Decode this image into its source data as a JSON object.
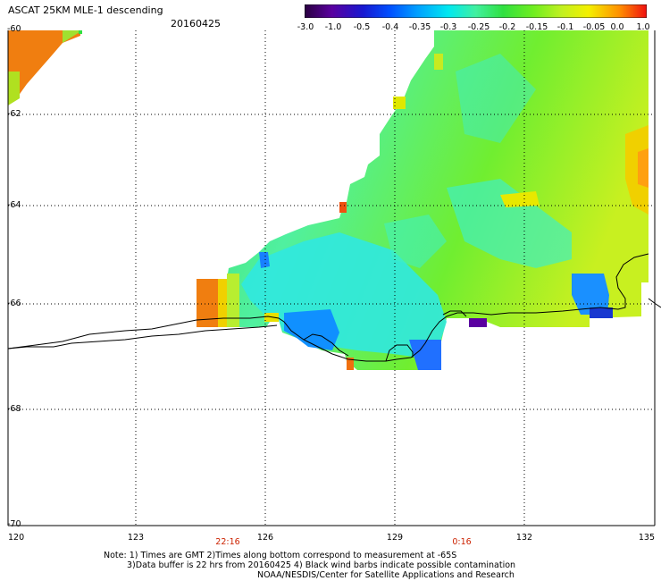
{
  "header": {
    "title": "ASCAT 25KM MLE-1 descending",
    "date": "20160425"
  },
  "colorbar": {
    "labels": [
      "-3.0",
      "-1.0",
      "-0.5",
      "-0.4",
      "-0.35",
      "-0.3",
      "-0.25",
      "-0.2",
      "-0.15",
      "-0.1",
      "-0.05",
      "0.0",
      "1.0"
    ],
    "colors": [
      "#2a0040",
      "#5a00a0",
      "#1818d0",
      "#0060ff",
      "#00a0ff",
      "#00e4f0",
      "#40f0a0",
      "#30e040",
      "#60ee20",
      "#b0f020",
      "#f4f000",
      "#ff9000",
      "#f01010"
    ]
  },
  "axes": {
    "lat_labels": [
      "-60",
      "-62",
      "-64",
      "-66",
      "-68",
      "-70"
    ],
    "lon_labels": [
      "120",
      "123",
      "126",
      "129",
      "132",
      "135"
    ]
  },
  "times": {
    "t1": "22:16",
    "t2": "0:16"
  },
  "notes": {
    "line1": "Note: 1) Times are GMT 2)Times along bottom correspond to measurement at -65S",
    "line2": "3)Data buffer is 22 hrs from 20160425 4) Black wind barbs indicate possible contamination",
    "line3": "NOAA/NESDIS/Center for Satellite Applications and Research"
  }
}
